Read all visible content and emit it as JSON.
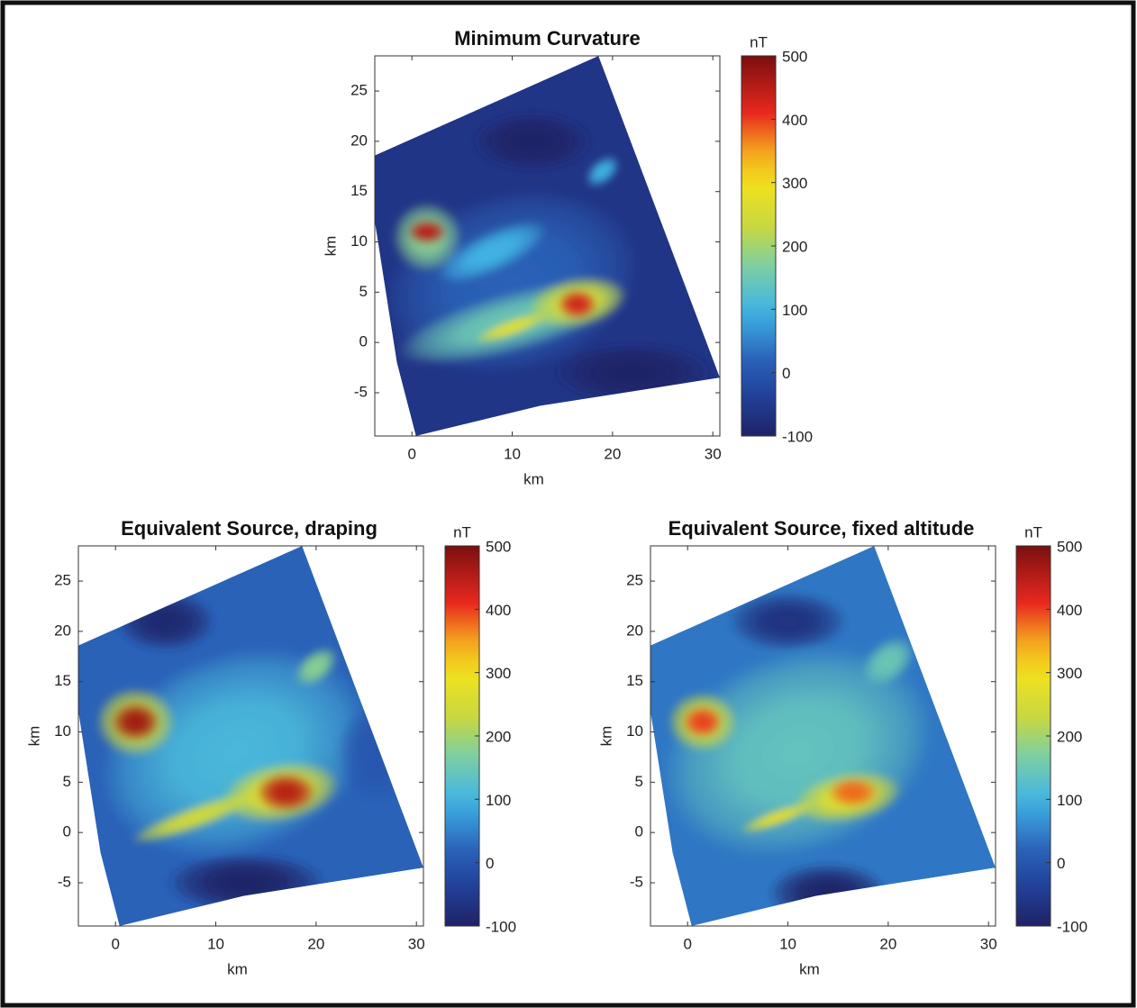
{
  "chart_data": [
    {
      "type": "heatmap",
      "title": "Minimum Curvature",
      "xlabel": "km",
      "ylabel": "km",
      "xlim": [
        -3.7,
        30.7
      ],
      "ylim": [
        -9.3,
        28.5
      ],
      "xticks": [
        0,
        10,
        20,
        30
      ],
      "yticks": [
        -5,
        0,
        5,
        10,
        15,
        20,
        25
      ],
      "colorbar": {
        "label": "nT",
        "lim": [
          -100,
          500
        ],
        "ticks": [
          -100,
          0,
          100,
          200,
          300,
          400,
          500
        ]
      },
      "outline": {
        "x": [
          -3.7,
          18.6,
          30.7,
          12.8,
          0.4,
          -1.5,
          -3.7
        ],
        "y": [
          18.6,
          28.5,
          -3.5,
          -6.3,
          -9.3,
          -2,
          12
        ]
      },
      "background_value": -60,
      "anomalies": [
        {
          "x": 10,
          "y": 6,
          "rx": 13,
          "ry": 9,
          "angle": 15,
          "value": 20
        },
        {
          "x": 12,
          "y": 20,
          "rx": 6,
          "ry": 3,
          "angle": 0,
          "value": -100
        },
        {
          "x": 22,
          "y": -3,
          "rx": 8,
          "ry": 3,
          "angle": 0,
          "value": -100
        },
        {
          "x": 10,
          "y": 2,
          "rx": 12,
          "ry": 3,
          "angle": 15,
          "value": 150
        },
        {
          "x": 8,
          "y": 9,
          "rx": 6,
          "ry": 2,
          "angle": 25,
          "value": 100
        },
        {
          "x": 1.5,
          "y": 10.5,
          "rx": 3.5,
          "ry": 3.5,
          "angle": 0,
          "value": 180
        },
        {
          "x": 1.5,
          "y": 11,
          "rx": 2,
          "ry": 1.3,
          "angle": 0,
          "value": 450
        },
        {
          "x": 16.5,
          "y": 4,
          "rx": 5,
          "ry": 2.5,
          "angle": 10,
          "value": 250
        },
        {
          "x": 16.5,
          "y": 3.8,
          "rx": 2,
          "ry": 1.5,
          "angle": 0,
          "value": 430
        },
        {
          "x": 10,
          "y": 1.5,
          "rx": 4,
          "ry": 0.8,
          "angle": 20,
          "value": 280
        },
        {
          "x": 19,
          "y": 17,
          "rx": 2,
          "ry": 1.2,
          "angle": 40,
          "value": 100
        }
      ]
    },
    {
      "type": "heatmap",
      "title": "Equivalent Source, draping",
      "xlabel": "km",
      "ylabel": "km",
      "xlim": [
        -3.7,
        30.7
      ],
      "ylim": [
        -9.3,
        28.5
      ],
      "xticks": [
        0,
        10,
        20,
        30
      ],
      "yticks": [
        -5,
        0,
        5,
        10,
        15,
        20,
        25
      ],
      "colorbar": {
        "label": "nT",
        "lim": [
          -100,
          500
        ],
        "ticks": [
          -100,
          0,
          100,
          200,
          300,
          400,
          500
        ]
      },
      "outline": {
        "x": [
          -3.7,
          18.6,
          30.7,
          12.8,
          0.4,
          -1.5,
          -3.7
        ],
        "y": [
          18.6,
          28.5,
          -3.5,
          -6.3,
          -9.3,
          -2,
          12
        ]
      },
      "background_value": 20,
      "anomalies": [
        {
          "x": 12,
          "y": 8,
          "rx": 14,
          "ry": 10,
          "angle": 20,
          "value": 110
        },
        {
          "x": 5,
          "y": 21,
          "rx": 5,
          "ry": 3,
          "angle": 0,
          "value": -90
        },
        {
          "x": 26,
          "y": 8,
          "rx": 4,
          "ry": 5,
          "angle": 0,
          "value": 0
        },
        {
          "x": 13,
          "y": -5,
          "rx": 8,
          "ry": 3,
          "angle": 0,
          "value": -100
        },
        {
          "x": 2,
          "y": 11,
          "rx": 4,
          "ry": 3.5,
          "angle": 0,
          "value": 250
        },
        {
          "x": 2,
          "y": 11,
          "rx": 2.5,
          "ry": 2,
          "angle": 0,
          "value": 470
        },
        {
          "x": 16.5,
          "y": 4,
          "rx": 6,
          "ry": 3,
          "angle": 10,
          "value": 280
        },
        {
          "x": 17,
          "y": 4,
          "rx": 3,
          "ry": 2,
          "angle": 0,
          "value": 450
        },
        {
          "x": 8,
          "y": 1.5,
          "rx": 7,
          "ry": 1.2,
          "angle": 20,
          "value": 250
        },
        {
          "x": 20,
          "y": 16.5,
          "rx": 2.5,
          "ry": 1.5,
          "angle": 40,
          "value": 180
        }
      ]
    },
    {
      "type": "heatmap",
      "title": "Equivalent Source, fixed altitude",
      "xlabel": "km",
      "ylabel": "km",
      "xlim": [
        -3.7,
        30.7
      ],
      "ylim": [
        -9.3,
        28.5
      ],
      "xticks": [
        0,
        10,
        20,
        30
      ],
      "yticks": [
        -5,
        0,
        5,
        10,
        15,
        20,
        25
      ],
      "colorbar": {
        "label": "nT",
        "lim": [
          -100,
          500
        ],
        "ticks": [
          -100,
          0,
          100,
          200,
          300,
          400,
          500
        ]
      },
      "outline": {
        "x": [
          -3.7,
          18.6,
          30.7,
          12.8,
          0.4,
          -1.5,
          -3.7
        ],
        "y": [
          18.6,
          28.5,
          -3.5,
          -6.3,
          -9.3,
          -2,
          12
        ]
      },
      "background_value": 40,
      "anomalies": [
        {
          "x": 11,
          "y": 8,
          "rx": 14,
          "ry": 10,
          "angle": 20,
          "value": 140
        },
        {
          "x": 10,
          "y": 21,
          "rx": 6,
          "ry": 3,
          "angle": 0,
          "value": -70
        },
        {
          "x": 14,
          "y": -6,
          "rx": 6,
          "ry": 3,
          "angle": 0,
          "value": -100
        },
        {
          "x": 1.5,
          "y": 11,
          "rx": 3.5,
          "ry": 3,
          "angle": 0,
          "value": 250
        },
        {
          "x": 1.5,
          "y": 11,
          "rx": 2,
          "ry": 1.6,
          "angle": 0,
          "value": 400
        },
        {
          "x": 16,
          "y": 3.5,
          "rx": 5.5,
          "ry": 2.5,
          "angle": 10,
          "value": 270
        },
        {
          "x": 16.5,
          "y": 4,
          "rx": 2.5,
          "ry": 1.5,
          "angle": 0,
          "value": 380
        },
        {
          "x": 9,
          "y": 1.5,
          "rx": 4,
          "ry": 0.8,
          "angle": 20,
          "value": 280
        },
        {
          "x": 20,
          "y": 17,
          "rx": 3,
          "ry": 2,
          "angle": 40,
          "value": 150
        }
      ]
    }
  ]
}
